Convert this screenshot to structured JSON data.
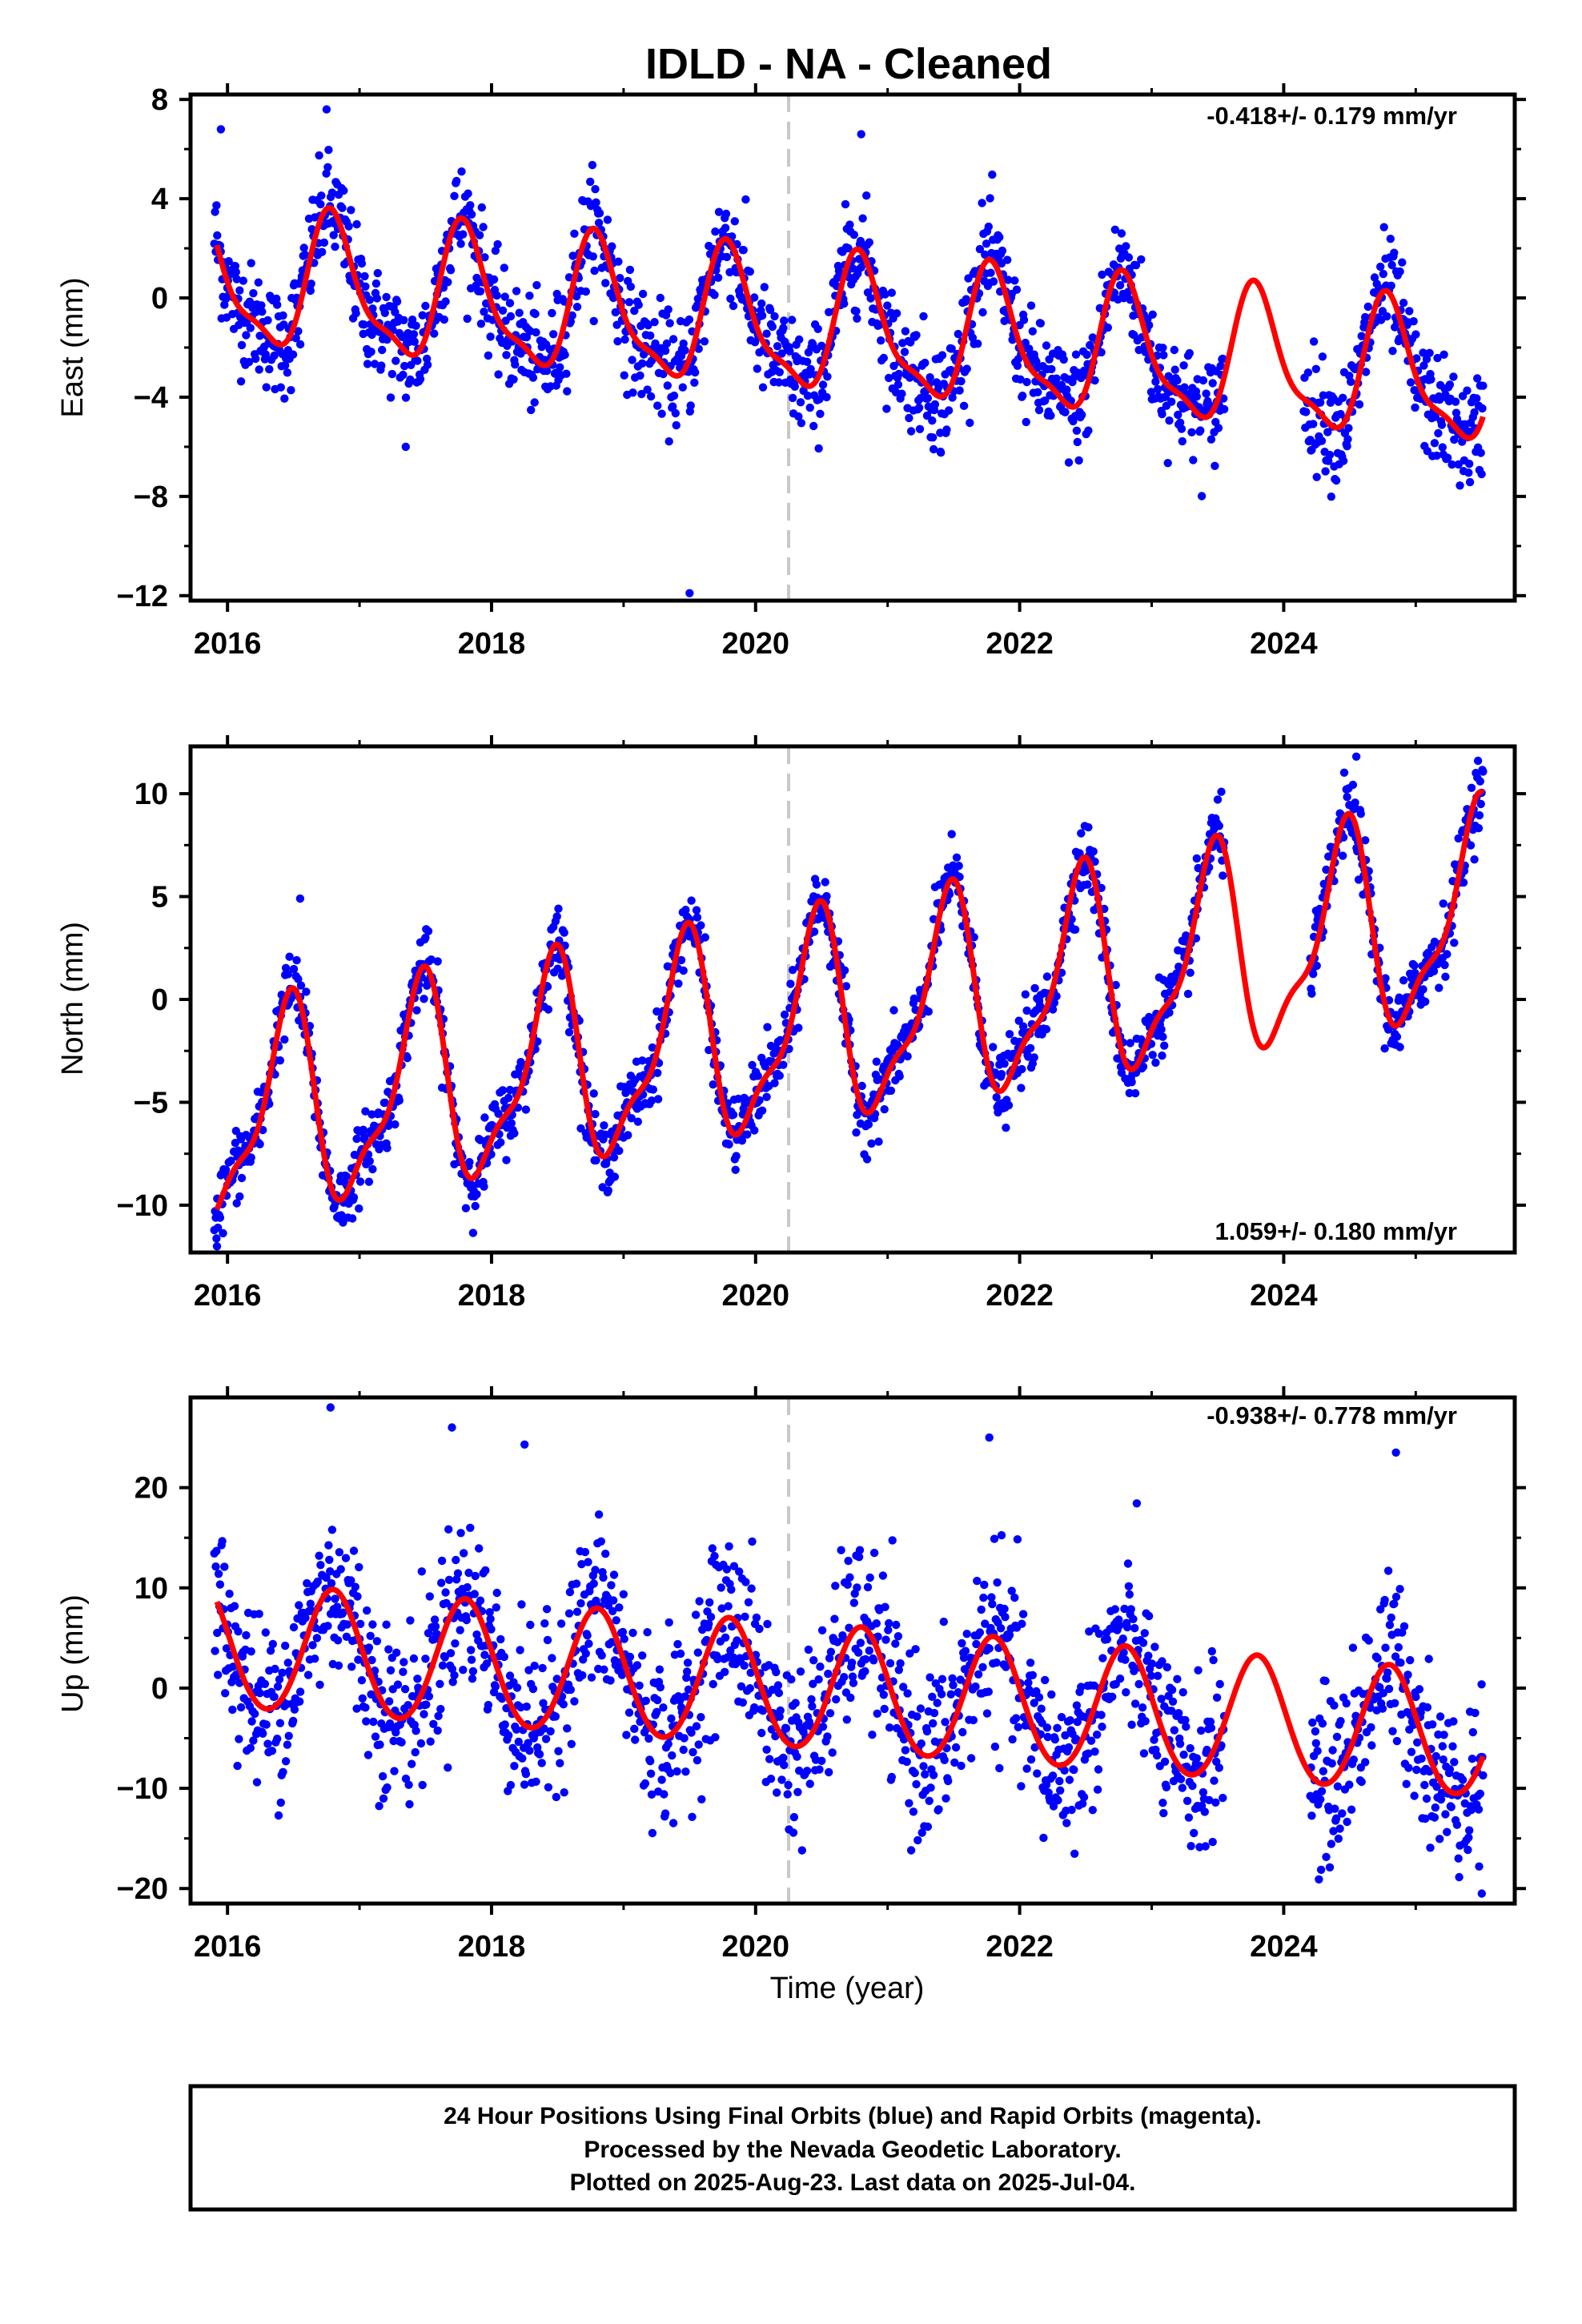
{
  "title": "IDLD  - NA - Cleaned",
  "xlabel": "Time (year)",
  "footer": [
    "24 Hour Positions Using Final Orbits (blue) and Rapid Orbits (magenta).",
    "Processed by the Nevada Geodetic Laboratory.",
    "Plotted on 2025-Aug-23. Last data on 2025-Jul-04."
  ],
  "colors": {
    "points": "#0000ff",
    "model": "#ff0000",
    "event_line": "#c8c8c8"
  },
  "chart_data": [
    {
      "type": "scatter",
      "panel": "east",
      "ylabel": "East (mm)",
      "rate": "-0.418+/- 0.179 mm/yr",
      "rate_position": "top-right",
      "xlim": [
        2015.72,
        2025.75
      ],
      "ylim": [
        -12.2,
        8.2
      ],
      "yticks": [
        8,
        4,
        0,
        -4,
        -8,
        -12
      ],
      "ytick_labels": [
        "8",
        "4",
        "0",
        "−4",
        "−8",
        "−12"
      ],
      "xticks": [
        2016,
        2018,
        2020,
        2022,
        2024
      ],
      "xtick_labels": [
        "2016",
        "2018",
        "2020",
        "2022",
        "2024"
      ],
      "event_line_x": 2020.25,
      "data_start": 2015.9,
      "data_end": 2025.51,
      "gaps": [
        [
          2023.55,
          2024.15
        ]
      ],
      "model": {
        "offset": 0.63,
        "rate": -0.418,
        "amp_annual": 2.6,
        "peak_annual": 0.8,
        "amp_semiannual": 0.8,
        "peak_semiannual": 0.75,
        "ref_year": 2016.0
      },
      "scatter_sd": 1.1,
      "outliers": [
        [
          2016.75,
          7.6
        ],
        [
          2017.35,
          -6.0
        ],
        [
          2019.5,
          -11.9
        ],
        [
          2020.8,
          6.6
        ],
        [
          2021.4,
          -6.2
        ],
        [
          2015.95,
          6.8
        ]
      ]
    },
    {
      "type": "scatter",
      "panel": "north",
      "ylabel": "North (mm)",
      "rate": "1.059+/- 0.180 mm/yr",
      "rate_position": "bottom-right",
      "xlim": [
        2015.72,
        2025.75
      ],
      "ylim": [
        -12.3,
        12.3
      ],
      "yticks": [
        10,
        5,
        0,
        -5,
        -10
      ],
      "ytick_labels": [
        "10",
        "5",
        "0",
        "−5",
        "−10"
      ],
      "xticks": [
        2016,
        2018,
        2020,
        2022,
        2024
      ],
      "xtick_labels": [
        "2016",
        "2018",
        "2020",
        "2022",
        "2024"
      ],
      "event_line_x": 2020.25,
      "data_start": 2015.9,
      "data_end": 2025.51,
      "gaps": [
        [
          2023.55,
          2024.2
        ]
      ],
      "model": {
        "offset": -6.0,
        "rate": 1.059,
        "amp_annual": 4.7,
        "peak_annual": 0.45,
        "amp_semiannual": 1.6,
        "peak_semiannual": 0.52,
        "ref_year": 2016.0
      },
      "scatter_sd": 0.85,
      "outliers": [
        [
          2015.92,
          -12.0
        ],
        [
          2024.55,
          11.8
        ],
        [
          2016.55,
          4.9
        ]
      ]
    },
    {
      "type": "scatter",
      "panel": "up",
      "ylabel": "Up (mm)",
      "rate": "-0.938+/- 0.778 mm/yr",
      "rate_position": "top-right",
      "xlim": [
        2015.72,
        2025.75
      ],
      "ylim": [
        -21.5,
        29
      ],
      "yticks": [
        20,
        10,
        0,
        -10,
        -20
      ],
      "ytick_labels": [
        "20",
        "10",
        "0",
        "−10",
        "−20"
      ],
      "xticks": [
        2016,
        2018,
        2020,
        2022,
        2024
      ],
      "xtick_labels": [
        "2016",
        "2018",
        "2020",
        "2022",
        "2024"
      ],
      "event_line_x": 2020.25,
      "data_start": 2015.9,
      "data_end": 2025.51,
      "gaps": [
        [
          2023.55,
          2024.2
        ]
      ],
      "model": {
        "offset": 4.0,
        "rate": -0.938,
        "amp_annual": 6.2,
        "peak_annual": 0.8,
        "amp_semiannual": 0.4,
        "peak_semiannual": 0.8,
        "ref_year": 2016.0
      },
      "scatter_sd": 4.3,
      "outliers": [
        [
          2016.78,
          28.0
        ],
        [
          2017.7,
          26.0
        ],
        [
          2018.25,
          24.3
        ],
        [
          2021.77,
          25.0
        ],
        [
          2024.85,
          23.5
        ],
        [
          2025.5,
          -20.5
        ],
        [
          2025.48,
          -17.8
        ]
      ]
    }
  ]
}
